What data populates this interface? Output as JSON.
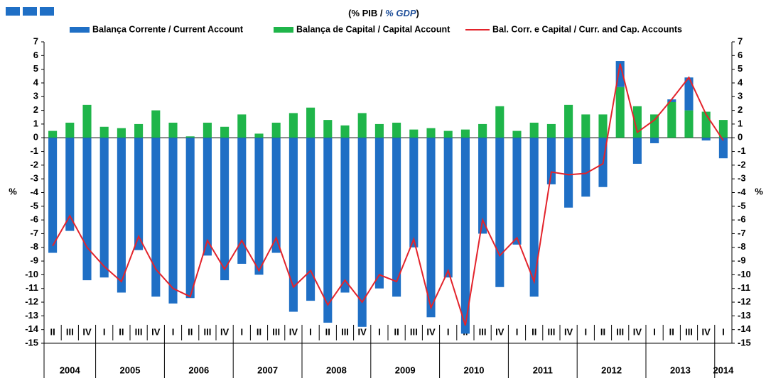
{
  "chart_data": {
    "type": "bar",
    "subtitle": [
      "(% PIB / ",
      "% GDP",
      ")"
    ],
    "y_label": "%",
    "y2_label": "%",
    "categories": [
      "II",
      "III",
      "IV",
      "I",
      "II",
      "III",
      "IV",
      "I",
      "II",
      "III",
      "IV",
      "I",
      "II",
      "III",
      "IV",
      "I",
      "II",
      "III",
      "IV",
      "I",
      "II",
      "III",
      "IV",
      "I",
      "II",
      "III",
      "IV",
      "I",
      "II",
      "III",
      "IV",
      "I",
      "II",
      "III",
      "IV",
      "I",
      "II",
      "III",
      "IV",
      "I"
    ],
    "years": [
      "2004",
      "2005",
      "2006",
      "2007",
      "2008",
      "2009",
      "2010",
      "2011",
      "2012",
      "2013",
      "2014"
    ],
    "series": [
      {
        "name": "Balança Corrente / Current Account",
        "kind": "bar",
        "color": "#1f6fc5",
        "values": [
          -8.4,
          -6.8,
          -10.4,
          -10.2,
          -11.3,
          -8.2,
          -11.6,
          -12.1,
          -11.7,
          -8.6,
          -10.4,
          -9.2,
          -10.0,
          -8.4,
          -12.7,
          -11.9,
          -13.5,
          -11.3,
          -13.8,
          -11.0,
          -11.6,
          -8.0,
          -13.1,
          -10.2,
          -14.3,
          -7.0,
          -10.9,
          -7.8,
          -11.6,
          -3.4,
          -5.1,
          -4.3,
          -3.6,
          1.9,
          -1.9,
          -0.4,
          0.2,
          2.4,
          -0.2,
          -1.5
        ]
      },
      {
        "name": "Balança de Capital / Capital Account",
        "kind": "bar",
        "color": "#1fb54a",
        "values": [
          0.5,
          1.1,
          2.4,
          0.8,
          0.7,
          1.0,
          2.0,
          1.1,
          0.1,
          1.1,
          0.8,
          1.7,
          0.3,
          1.1,
          1.8,
          2.2,
          1.3,
          0.9,
          1.8,
          1.0,
          1.1,
          0.6,
          0.7,
          0.5,
          0.6,
          1.0,
          2.3,
          0.5,
          1.1,
          1.0,
          2.4,
          1.7,
          1.7,
          3.7,
          2.3,
          1.7,
          2.6,
          2.0,
          1.9,
          1.3
        ]
      },
      {
        "name": "Bal. Corr. e Capital / Curr. and Cap. Accounts",
        "kind": "line",
        "color": "#e3232b",
        "values": [
          -7.9,
          -5.7,
          -8.0,
          -9.4,
          -10.5,
          -7.2,
          -9.6,
          -11.0,
          -11.6,
          -7.5,
          -9.6,
          -7.5,
          -9.7,
          -7.3,
          -10.9,
          -9.7,
          -12.2,
          -10.4,
          -12.0,
          -10.0,
          -10.5,
          -7.4,
          -12.4,
          -9.7,
          -13.7,
          -6.0,
          -8.6,
          -7.3,
          -10.5,
          -2.5,
          -2.7,
          -2.6,
          -1.9,
          5.4,
          0.4,
          1.3,
          2.8,
          4.4,
          1.7,
          -0.2
        ]
      }
    ],
    "ylim": [
      -15,
      7
    ],
    "yticks": [
      -15,
      -14,
      -13,
      -12,
      -11,
      -10,
      -9,
      -8,
      -7,
      -6,
      -5,
      -4,
      -3,
      -2,
      -1,
      0,
      1,
      2,
      3,
      4,
      5,
      6,
      7
    ],
    "y2lim": [
      -15,
      7
    ],
    "y2ticks": [
      -15,
      -14,
      -13,
      -12,
      -11,
      -10,
      -9,
      -8,
      -7,
      -6,
      -5,
      -4,
      -3,
      -2,
      -1,
      0,
      1,
      2,
      3,
      4,
      5,
      6,
      7
    ]
  }
}
